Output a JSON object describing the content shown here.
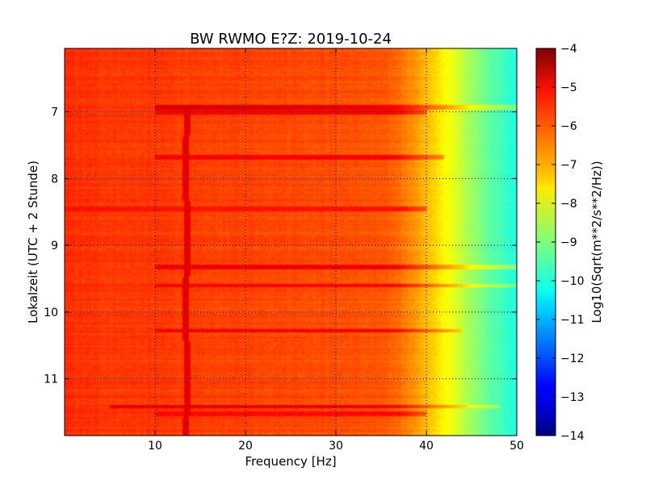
{
  "chart_data": {
    "type": "heatmap",
    "title": "BW RWMO E?Z: 2019-10-24",
    "xlabel": "Frequency [Hz]",
    "ylabel": "Lokalzeit (UTC + 2 Stunde)",
    "xlim": [
      0,
      50
    ],
    "ylim": [
      11.85,
      6.05
    ],
    "x_ticks": [
      10,
      20,
      30,
      40,
      50
    ],
    "y_ticks": [
      7,
      8,
      9,
      10,
      11
    ],
    "grid": true,
    "colormap": "jet",
    "colorbar": {
      "label": "Log10(Sqrt(m**2/s**2/Hz))",
      "min": -14,
      "max": -4,
      "ticks": [
        -4,
        -5,
        -6,
        -7,
        -8,
        -9,
        -10,
        -11,
        -12,
        -13,
        -14
      ]
    },
    "frequency_profile": {
      "frequency_hz": [
        0,
        5,
        10,
        15,
        20,
        25,
        30,
        35,
        37,
        39,
        41,
        43,
        45,
        47,
        50
      ],
      "level": [
        -5.7,
        -5.8,
        -5.8,
        -5.9,
        -5.9,
        -5.95,
        -6.0,
        -6.1,
        -6.3,
        -6.8,
        -7.4,
        -8.0,
        -8.7,
        -9.3,
        -10.0
      ]
    },
    "features": {
      "spectral_line": {
        "frequency_hz": 13.5,
        "time_range": [
          6.9,
          11.85
        ],
        "level": -5.0
      },
      "broadband_bands": [
        {
          "time": 6.93,
          "f_from": 10,
          "f_to": 50,
          "level": -4.9
        },
        {
          "time": 7.0,
          "f_from": 10,
          "f_to": 40,
          "level": -5.2
        },
        {
          "time": 7.68,
          "f_from": 10,
          "f_to": 42,
          "level": -5.2
        },
        {
          "time": 8.45,
          "f_from": 0,
          "f_to": 40,
          "level": -5.4
        },
        {
          "time": 9.33,
          "f_from": 10,
          "f_to": 50,
          "level": -5.1
        },
        {
          "time": 9.6,
          "f_from": 10,
          "f_to": 50,
          "level": -5.2
        },
        {
          "time": 10.28,
          "f_from": 10,
          "f_to": 44,
          "level": -5.1
        },
        {
          "time": 11.42,
          "f_from": 5,
          "f_to": 48,
          "level": -5.0
        },
        {
          "time": 11.52,
          "f_from": 10,
          "f_to": 40,
          "level": -5.3
        }
      ]
    }
  }
}
